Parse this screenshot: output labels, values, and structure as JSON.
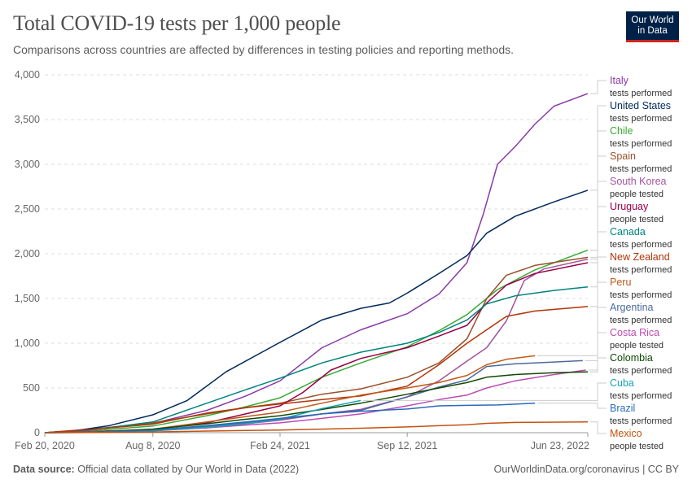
{
  "header": {
    "title": "Total COVID-19 tests per 1,000 people",
    "subtitle": "Comparisons across countries are affected by differences in testing policies and reporting methods.",
    "logo_line1": "Our World",
    "logo_line2": "in Data"
  },
  "footer": {
    "source_label": "Data source:",
    "source_text": "Official data collated by Our World in Data (2022)",
    "url_text": "OurWorldinData.org/coronavirus | CC BY"
  },
  "chart_data": {
    "type": "line",
    "title": "Total COVID-19 tests per 1,000 people",
    "subtitle": "Comparisons across countries are affected by differences in testing policies and reporting methods.",
    "xlabel": "",
    "ylabel": "",
    "x_ticks": [
      "2020-02-20",
      "2020-08-08",
      "2021-02-24",
      "2021-09-12",
      "2022-06-23"
    ],
    "x_tick_labels": [
      "Feb 20, 2020",
      "Aug 8, 2020",
      "Feb 24, 2021",
      "Sep 12, 2021",
      "Jun 23, 2022"
    ],
    "xlim": [
      "2020-02-20",
      "2022-06-23"
    ],
    "ylim": [
      0,
      4000
    ],
    "y_ticks": [
      0,
      500,
      1000,
      1500,
      2000,
      2500,
      3000,
      3500,
      4000
    ],
    "y_tick_labels": [
      "0",
      "500",
      "1,000",
      "1,500",
      "2,000",
      "2,500",
      "3,000",
      "3,500",
      "4,000"
    ],
    "grid": true,
    "legend_placement": "right",
    "series": [
      {
        "name": "Italy",
        "note": "tests performed",
        "color": "#883aa7",
        "points": [
          [
            "2020-02-20",
            0
          ],
          [
            "2020-05-01",
            40
          ],
          [
            "2020-08-08",
            105
          ],
          [
            "2020-11-01",
            250
          ],
          [
            "2021-01-01",
            410
          ],
          [
            "2021-02-24",
            580
          ],
          [
            "2021-05-01",
            950
          ],
          [
            "2021-07-01",
            1150
          ],
          [
            "2021-09-12",
            1330
          ],
          [
            "2021-11-01",
            1550
          ],
          [
            "2021-12-15",
            1900
          ],
          [
            "2022-01-10",
            2450
          ],
          [
            "2022-02-01",
            3000
          ],
          [
            "2022-03-01",
            3200
          ],
          [
            "2022-04-01",
            3450
          ],
          [
            "2022-05-01",
            3650
          ],
          [
            "2022-06-23",
            3790
          ]
        ]
      },
      {
        "name": "United States",
        "note": "tests performed",
        "color": "#00295b",
        "points": [
          [
            "2020-02-20",
            0
          ],
          [
            "2020-04-01",
            15
          ],
          [
            "2020-06-01",
            80
          ],
          [
            "2020-08-08",
            200
          ],
          [
            "2020-10-01",
            360
          ],
          [
            "2020-12-01",
            680
          ],
          [
            "2021-02-24",
            1010
          ],
          [
            "2021-05-01",
            1260
          ],
          [
            "2021-07-01",
            1390
          ],
          [
            "2021-08-15",
            1450
          ],
          [
            "2021-09-12",
            1560
          ],
          [
            "2021-11-01",
            1780
          ],
          [
            "2021-12-15",
            1980
          ],
          [
            "2022-01-15",
            2230
          ],
          [
            "2022-03-01",
            2420
          ],
          [
            "2022-05-01",
            2580
          ],
          [
            "2022-06-23",
            2710
          ]
        ]
      },
      {
        "name": "Chile",
        "note": "tests performed",
        "color": "#38aa34",
        "points": [
          [
            "2020-02-20",
            0
          ],
          [
            "2020-05-01",
            20
          ],
          [
            "2020-08-08",
            75
          ],
          [
            "2020-11-01",
            190
          ],
          [
            "2021-01-01",
            290
          ],
          [
            "2021-02-24",
            390
          ],
          [
            "2021-05-01",
            620
          ],
          [
            "2021-07-01",
            780
          ],
          [
            "2021-09-12",
            960
          ],
          [
            "2021-11-01",
            1140
          ],
          [
            "2021-12-15",
            1320
          ],
          [
            "2022-02-01",
            1600
          ],
          [
            "2022-04-01",
            1820
          ],
          [
            "2022-06-23",
            2040
          ]
        ]
      },
      {
        "name": "Spain",
        "note": "tests performed",
        "color": "#9a5129",
        "points": [
          [
            "2020-02-20",
            0
          ],
          [
            "2020-05-01",
            35
          ],
          [
            "2020-08-08",
            110
          ],
          [
            "2020-11-01",
            210
          ],
          [
            "2021-01-01",
            280
          ],
          [
            "2021-02-24",
            330
          ],
          [
            "2021-05-01",
            430
          ],
          [
            "2021-07-01",
            490
          ],
          [
            "2021-09-12",
            620
          ],
          [
            "2021-11-01",
            780
          ],
          [
            "2021-12-15",
            1050
          ],
          [
            "2022-01-15",
            1500
          ],
          [
            "2022-02-15",
            1760
          ],
          [
            "2022-04-01",
            1870
          ],
          [
            "2022-06-23",
            1960
          ]
        ]
      },
      {
        "name": "South Korea",
        "note": "people tested",
        "color": "#a2559c",
        "points": [
          [
            "2020-02-20",
            0
          ],
          [
            "2020-05-01",
            15
          ],
          [
            "2020-08-08",
            30
          ],
          [
            "2020-11-01",
            55
          ],
          [
            "2021-01-01",
            100
          ],
          [
            "2021-02-24",
            140
          ],
          [
            "2021-05-01",
            210
          ],
          [
            "2021-07-01",
            260
          ],
          [
            "2021-09-12",
            400
          ],
          [
            "2021-11-01",
            580
          ],
          [
            "2021-12-15",
            800
          ],
          [
            "2022-01-15",
            950
          ],
          [
            "2022-02-15",
            1250
          ],
          [
            "2022-03-15",
            1700
          ],
          [
            "2022-04-15",
            1830
          ],
          [
            "2022-06-23",
            1940
          ]
        ]
      },
      {
        "name": "Uruguay",
        "note": "people tested",
        "color": "#970046",
        "points": [
          [
            "2020-02-20",
            0
          ],
          [
            "2020-05-01",
            10
          ],
          [
            "2020-08-08",
            35
          ],
          [
            "2020-11-01",
            110
          ],
          [
            "2021-01-01",
            210
          ],
          [
            "2021-02-24",
            300
          ],
          [
            "2021-04-01",
            450
          ],
          [
            "2021-05-15",
            700
          ],
          [
            "2021-07-01",
            830
          ],
          [
            "2021-09-12",
            950
          ],
          [
            "2021-11-01",
            1080
          ],
          [
            "2021-12-15",
            1200
          ],
          [
            "2022-01-15",
            1450
          ],
          [
            "2022-02-15",
            1650
          ],
          [
            "2022-04-01",
            1780
          ],
          [
            "2022-06-23",
            1900
          ]
        ]
      },
      {
        "name": "Canada",
        "note": "tests performed",
        "color": "#00847e",
        "points": [
          [
            "2020-02-20",
            0
          ],
          [
            "2020-05-01",
            30
          ],
          [
            "2020-08-08",
            120
          ],
          [
            "2020-11-01",
            330
          ],
          [
            "2021-01-01",
            480
          ],
          [
            "2021-02-24",
            610
          ],
          [
            "2021-05-01",
            780
          ],
          [
            "2021-07-01",
            900
          ],
          [
            "2021-09-12",
            1000
          ],
          [
            "2021-11-01",
            1120
          ],
          [
            "2021-12-15",
            1260
          ],
          [
            "2022-01-15",
            1440
          ],
          [
            "2022-03-01",
            1530
          ],
          [
            "2022-05-01",
            1590
          ],
          [
            "2022-06-23",
            1630
          ]
        ]
      },
      {
        "name": "New Zealand",
        "note": "tests performed",
        "color": "#b13507",
        "points": [
          [
            "2020-02-20",
            0
          ],
          [
            "2020-05-01",
            35
          ],
          [
            "2020-08-08",
            95
          ],
          [
            "2020-11-01",
            220
          ],
          [
            "2021-01-01",
            280
          ],
          [
            "2021-02-24",
            320
          ],
          [
            "2021-05-01",
            370
          ],
          [
            "2021-07-01",
            410
          ],
          [
            "2021-09-12",
            520
          ],
          [
            "2021-11-01",
            760
          ],
          [
            "2021-12-15",
            1000
          ],
          [
            "2022-01-15",
            1150
          ],
          [
            "2022-02-15",
            1300
          ],
          [
            "2022-04-01",
            1360
          ],
          [
            "2022-06-23",
            1410
          ]
        ]
      },
      {
        "name": "Peru",
        "note": "tests performed",
        "color": "#c05917",
        "points": [
          [
            "2020-02-20",
            0
          ],
          [
            "2020-05-01",
            10
          ],
          [
            "2020-08-08",
            40
          ],
          [
            "2020-11-01",
            120
          ],
          [
            "2021-01-01",
            180
          ],
          [
            "2021-02-24",
            230
          ],
          [
            "2021-05-01",
            330
          ],
          [
            "2021-07-01",
            420
          ],
          [
            "2021-09-12",
            500
          ],
          [
            "2021-11-01",
            560
          ],
          [
            "2021-12-15",
            640
          ],
          [
            "2022-01-15",
            760
          ],
          [
            "2022-02-15",
            820
          ],
          [
            "2022-04-01",
            860
          ]
        ]
      },
      {
        "name": "Argentina",
        "note": "tests performed",
        "color": "#4c6a9c",
        "points": [
          [
            "2020-02-20",
            0
          ],
          [
            "2020-05-01",
            5
          ],
          [
            "2020-08-08",
            25
          ],
          [
            "2020-11-01",
            70
          ],
          [
            "2021-01-01",
            110
          ],
          [
            "2021-02-24",
            150
          ],
          [
            "2021-05-01",
            210
          ],
          [
            "2021-07-01",
            250
          ],
          [
            "2021-09-12",
            400
          ],
          [
            "2021-11-01",
            510
          ],
          [
            "2021-12-15",
            590
          ],
          [
            "2022-01-15",
            740
          ],
          [
            "2022-03-01",
            770
          ],
          [
            "2022-05-01",
            790
          ],
          [
            "2022-06-15",
            805
          ]
        ]
      },
      {
        "name": "Costa Rica",
        "note": "people tested",
        "color": "#bc4bb4",
        "points": [
          [
            "2020-02-20",
            0
          ],
          [
            "2020-05-01",
            5
          ],
          [
            "2020-08-08",
            20
          ],
          [
            "2020-11-01",
            55
          ],
          [
            "2021-01-01",
            85
          ],
          [
            "2021-02-24",
            110
          ],
          [
            "2021-05-01",
            160
          ],
          [
            "2021-07-01",
            210
          ],
          [
            "2021-09-12",
            300
          ],
          [
            "2021-11-01",
            370
          ],
          [
            "2021-12-15",
            420
          ],
          [
            "2022-01-15",
            500
          ],
          [
            "2022-03-01",
            580
          ],
          [
            "2022-05-01",
            650
          ],
          [
            "2022-06-20",
            700
          ]
        ]
      },
      {
        "name": "Colombia",
        "note": "tests performed",
        "color": "#0f4900",
        "points": [
          [
            "2020-02-20",
            0
          ],
          [
            "2020-05-01",
            5
          ],
          [
            "2020-08-08",
            40
          ],
          [
            "2020-11-01",
            100
          ],
          [
            "2021-01-01",
            150
          ],
          [
            "2021-02-24",
            190
          ],
          [
            "2021-05-01",
            260
          ],
          [
            "2021-07-01",
            330
          ],
          [
            "2021-09-12",
            430
          ],
          [
            "2021-11-01",
            500
          ],
          [
            "2021-12-15",
            560
          ],
          [
            "2022-01-15",
            620
          ],
          [
            "2022-03-01",
            650
          ],
          [
            "2022-05-01",
            670
          ],
          [
            "2022-06-23",
            680
          ]
        ]
      },
      {
        "name": "Cuba",
        "note": "tests performed",
        "color": "#18a3b4",
        "points": [
          [
            "2020-02-20",
            0
          ],
          [
            "2020-05-01",
            2
          ],
          [
            "2020-08-08",
            20
          ],
          [
            "2020-11-01",
            60
          ],
          [
            "2021-01-01",
            100
          ],
          [
            "2021-02-24",
            150
          ],
          [
            "2021-05-01",
            270
          ],
          [
            "2021-07-01",
            360
          ]
        ]
      },
      {
        "name": "Brazil",
        "note": "tests performed",
        "color": "#286bbb",
        "points": [
          [
            "2020-02-20",
            0
          ],
          [
            "2020-05-01",
            5
          ],
          [
            "2020-08-08",
            30
          ],
          [
            "2020-11-01",
            80
          ],
          [
            "2021-01-01",
            120
          ],
          [
            "2021-02-24",
            160
          ],
          [
            "2021-05-01",
            210
          ],
          [
            "2021-07-01",
            240
          ],
          [
            "2021-09-12",
            265
          ],
          [
            "2021-11-01",
            300
          ],
          [
            "2021-12-15",
            305
          ],
          [
            "2022-02-01",
            310
          ],
          [
            "2022-04-01",
            330
          ]
        ]
      },
      {
        "name": "Mexico",
        "note": "people tested",
        "color": "#c4520f",
        "points": [
          [
            "2020-02-20",
            0
          ],
          [
            "2020-05-01",
            2
          ],
          [
            "2020-08-08",
            8
          ],
          [
            "2020-11-01",
            18
          ],
          [
            "2021-01-01",
            25
          ],
          [
            "2021-02-24",
            30
          ],
          [
            "2021-05-01",
            40
          ],
          [
            "2021-07-01",
            50
          ],
          [
            "2021-09-12",
            65
          ],
          [
            "2021-11-01",
            78
          ],
          [
            "2021-12-15",
            88
          ],
          [
            "2022-01-15",
            105
          ],
          [
            "2022-03-01",
            115
          ],
          [
            "2022-06-23",
            120
          ]
        ]
      }
    ]
  }
}
